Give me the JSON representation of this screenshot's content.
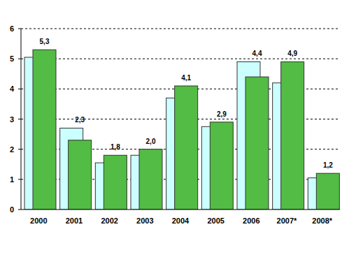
{
  "chart_data": {
    "type": "bar",
    "categories": [
      "2000",
      "2001",
      "2002",
      "2003",
      "2004",
      "2005",
      "2006",
      "2007*",
      "2008*"
    ],
    "series": [
      {
        "color": "#ccffff",
        "values": [
          5.05,
          2.7,
          1.55,
          1.8,
          3.7,
          2.75,
          4.9,
          4.2,
          1.05
        ]
      },
      {
        "color": "#52bc44",
        "values": [
          5.3,
          2.3,
          1.8,
          2.0,
          4.1,
          2.9,
          4.4,
          4.9,
          1.2
        ],
        "value_labels": [
          "5,3",
          "2,3",
          "1,8",
          "2,0",
          "4,1",
          "2,9",
          "4,4",
          "4,9",
          "1,2"
        ],
        "data_labels": true
      }
    ],
    "ylim": [
      0,
      6
    ],
    "yticks": [
      0,
      1,
      2,
      3,
      4,
      5,
      6
    ],
    "grid": true
  }
}
